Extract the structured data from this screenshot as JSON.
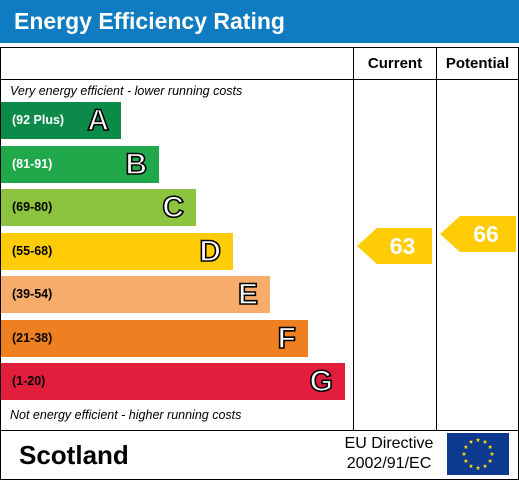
{
  "header": {
    "title": "Energy Efficiency Rating"
  },
  "columns": {
    "current": "Current",
    "potential": "Potential"
  },
  "notes": {
    "top": "Very energy efficient - lower running costs",
    "bottom": "Not energy efficient - higher running costs"
  },
  "chart_data": {
    "type": "bar",
    "bands": [
      {
        "letter": "A",
        "range": "(92 Plus)",
        "color": "#0c8a4a",
        "text_color": "#ffffff"
      },
      {
        "letter": "B",
        "range": "(81-91)",
        "color": "#21a84b",
        "text_color": "#ffffff"
      },
      {
        "letter": "C",
        "range": "(69-80)",
        "color": "#8cc43f",
        "text_color": "#000000"
      },
      {
        "letter": "D",
        "range": "(55-68)",
        "color": "#ffcc05",
        "text_color": "#000000"
      },
      {
        "letter": "E",
        "range": "(39-54)",
        "color": "#f7ac6b",
        "text_color": "#000000"
      },
      {
        "letter": "F",
        "range": "(21-38)",
        "color": "#ef8022",
        "text_color": "#000000"
      },
      {
        "letter": "G",
        "range": "(1-20)",
        "color": "#e31d3c",
        "text_color": "#000000"
      }
    ],
    "current": {
      "value": 63,
      "color": "#ffcc05"
    },
    "potential": {
      "value": 66,
      "color": "#ffcc05"
    }
  },
  "footer": {
    "country": "Scotland",
    "directive_line1": "EU Directive",
    "directive_line2": "2002/91/EC",
    "flag_colors": {
      "field": "#0d3a8f",
      "stars": "#ffdd00"
    }
  }
}
